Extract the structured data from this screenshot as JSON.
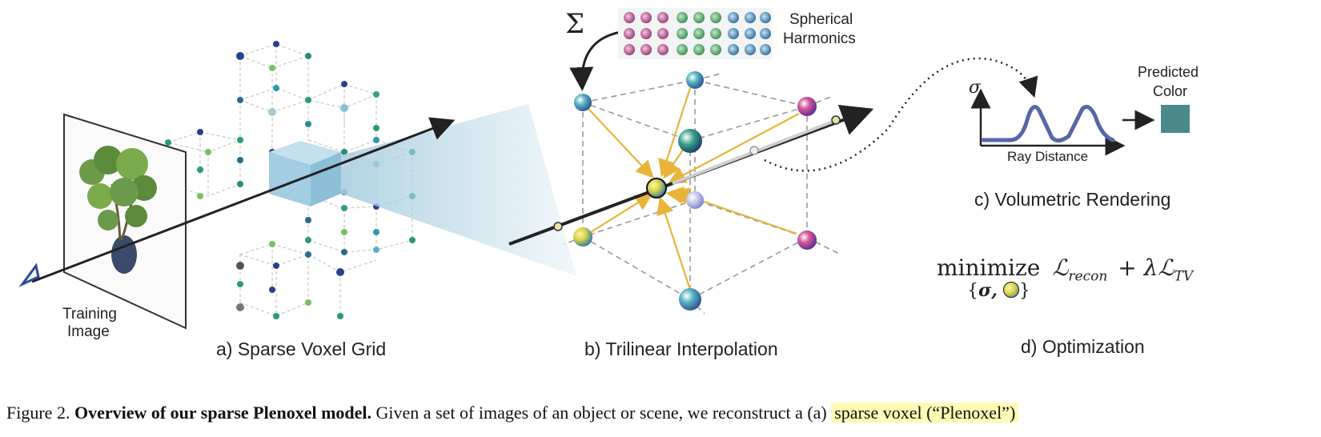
{
  "panels": {
    "a": {
      "caption": "a) Sparse Voxel Grid",
      "training_image_line1": "Training",
      "training_image_line2": "Image"
    },
    "b": {
      "caption": "b) Trilinear Interpolation",
      "sum_symbol": "Σ",
      "sh_label_line1": "Spherical",
      "sh_label_line2": "Harmonics"
    },
    "c": {
      "caption": "c) Volumetric Rendering",
      "sigma": "σ",
      "xaxis": "Ray Distance",
      "pred_line1": "Predicted",
      "pred_line2": "Color",
      "pred_color": "#4a8a8c"
    },
    "d": {
      "caption": "d) Optimization",
      "word": "minimize",
      "loss_l": "ℒ",
      "loss_recon_sub": "recon",
      "plus_lambda": "+ λ",
      "loss_tv_sub": "TV",
      "subscript_open": "{",
      "subscript_sigma": "σ,",
      "subscript_close": "}"
    }
  },
  "caption": {
    "prefix": "Figure 2.",
    "bold": "Overview of our sparse Plenoxel model.",
    "text": "Given a set of images of an object or scene, we reconstruct a (a)",
    "highlight": "sparse voxel (“Plenoxel”)"
  },
  "colors": {
    "ray": "#222222",
    "arrow_yellow": "#e8b43a",
    "voxel_cube": "#a9cfe0",
    "curve": "#5566aa"
  }
}
